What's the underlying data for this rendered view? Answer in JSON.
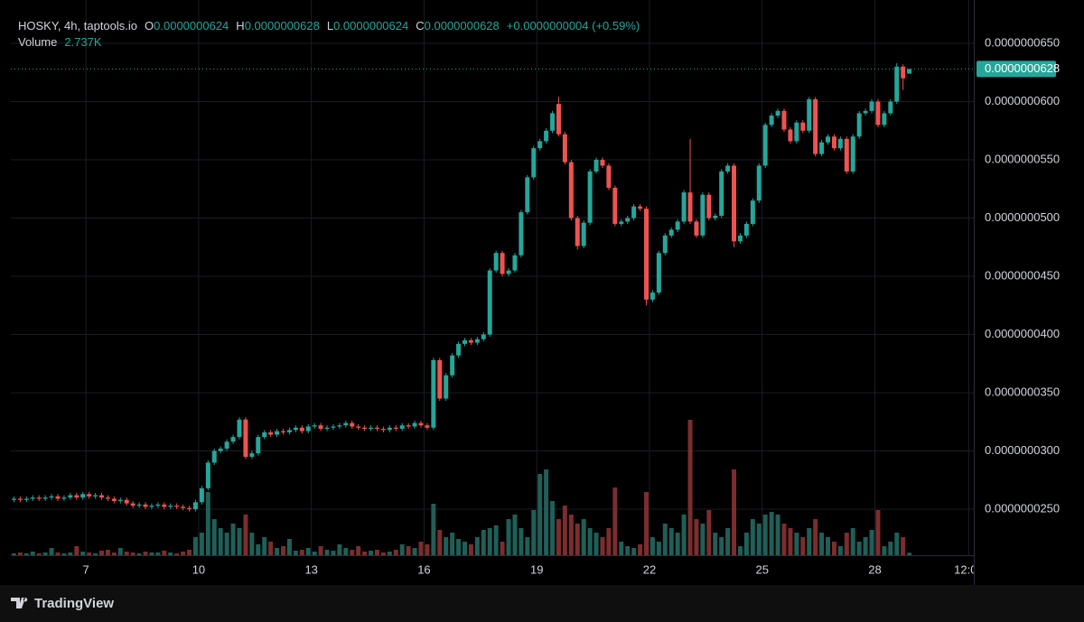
{
  "chart_data": {
    "type": "candlestick",
    "title": "HOSKY, 4h, taptools.io",
    "ohlc": [
      {
        "key": "O",
        "value": "0.0000000624"
      },
      {
        "key": "H",
        "value": "0.0000000628"
      },
      {
        "key": "L",
        "value": "0.0000000624"
      },
      {
        "key": "C",
        "value": "0.0000000628"
      }
    ],
    "change": "+0.0000000004 (+0.59%)",
    "volume_legend": {
      "name": "Volume",
      "label": "2.737K"
    },
    "last_price": {
      "value": 6.28e-08,
      "label": "0.0000000628"
    },
    "branding": "TradingView",
    "up_color": "#26a69a",
    "down_color": "#ef5350",
    "volume_up_color": "#1f5f58",
    "volume_down_color": "#7c2d2d",
    "grid": true,
    "xlim": [
      -0.5,
      153.3
    ],
    "xticks": [
      {
        "value": 11.5,
        "label": "7"
      },
      {
        "value": 29.5,
        "label": "10"
      },
      {
        "value": 47.5,
        "label": "13"
      },
      {
        "value": 65.5,
        "label": "16"
      },
      {
        "value": 83.5,
        "label": "19"
      },
      {
        "value": 101.5,
        "label": "22"
      },
      {
        "value": 119.5,
        "label": "25"
      },
      {
        "value": 137.5,
        "label": "28"
      },
      {
        "value": 152.5,
        "label": "12:00"
      }
    ],
    "ylim": [
      2.105e-08,
      6.795e-08
    ],
    "yticks": [
      {
        "value": 2.5e-08,
        "label": "0.0000000250"
      },
      {
        "value": 3e-08,
        "label": "0.0000000300"
      },
      {
        "value": 3.5e-08,
        "label": "0.0000000350"
      },
      {
        "value": 4e-08,
        "label": "0.0000000400"
      },
      {
        "value": 4.5e-08,
        "label": "0.0000000450"
      },
      {
        "value": 5e-08,
        "label": "0.0000000500"
      },
      {
        "value": 5.5e-08,
        "label": "0.0000000550"
      },
      {
        "value": 6e-08,
        "label": "0.0000000600"
      },
      {
        "value": 6.5e-08,
        "label": "0.0000000650"
      }
    ],
    "y2lim": [
      0,
      605000
    ],
    "open": [
      2.58e-08,
      2.59e-08,
      2.58e-08,
      2.59e-08,
      2.6e-08,
      2.59e-08,
      2.6e-08,
      2.61e-08,
      2.59e-08,
      2.6e-08,
      2.62e-08,
      2.6e-08,
      2.63e-08,
      2.61e-08,
      2.62e-08,
      2.6e-08,
      2.59e-08,
      2.57e-08,
      2.58e-08,
      2.55e-08,
      2.53e-08,
      2.54e-08,
      2.52e-08,
      2.53e-08,
      2.54e-08,
      2.52e-08,
      2.53e-08,
      2.52e-08,
      2.51e-08,
      2.5e-08,
      2.56e-08,
      2.68e-08,
      2.9e-08,
      3e-08,
      3.02e-08,
      3.08e-08,
      3.12e-08,
      3.27e-08,
      2.95e-08,
      2.98e-08,
      3.12e-08,
      3.16e-08,
      3.14e-08,
      3.17e-08,
      3.16e-08,
      3.18e-08,
      3.2e-08,
      3.17e-08,
      3.21e-08,
      3.22e-08,
      3.19e-08,
      3.2e-08,
      3.21e-08,
      3.22e-08,
      3.24e-08,
      3.21e-08,
      3.2e-08,
      3.19e-08,
      3.2e-08,
      3.19e-08,
      3.18e-08,
      3.2e-08,
      3.19e-08,
      3.22e-08,
      3.21e-08,
      3.24e-08,
      3.22e-08,
      3.2e-08,
      3.78e-08,
      3.45e-08,
      3.65e-08,
      3.82e-08,
      3.92e-08,
      3.95e-08,
      3.93e-08,
      3.96e-08,
      4e-08,
      4.55e-08,
      4.7e-08,
      4.52e-08,
      4.55e-08,
      4.68e-08,
      5.05e-08,
      5.35e-08,
      5.6e-08,
      5.66e-08,
      5.75e-08,
      5.98e-08,
      5.72e-08,
      5.48e-08,
      5e-08,
      4.76e-08,
      4.96e-08,
      5.4e-08,
      5.5e-08,
      5.45e-08,
      5.26e-08,
      4.95e-08,
      4.97e-08,
      5e-08,
      5.1e-08,
      5.08e-08,
      4.3e-08,
      4.36e-08,
      4.7e-08,
      4.85e-08,
      4.9e-08,
      4.97e-08,
      5.22e-08,
      4.97e-08,
      4.85e-08,
      5.2e-08,
      5e-08,
      5.02e-08,
      5.4e-08,
      5.45e-08,
      4.8e-08,
      4.85e-08,
      4.95e-08,
      5.15e-08,
      5.45e-08,
      5.8e-08,
      5.88e-08,
      5.92e-08,
      5.76e-08,
      5.66e-08,
      5.82e-08,
      5.75e-08,
      6.02e-08,
      5.55e-08,
      5.65e-08,
      5.7e-08,
      5.6e-08,
      5.68e-08,
      5.4e-08,
      5.7e-08,
      5.9e-08,
      5.92e-08,
      6e-08,
      5.8e-08,
      5.9e-08,
      6e-08,
      6.3e-08,
      6.24e-08
    ],
    "high": [
      2.61e-08,
      2.61e-08,
      2.61e-08,
      2.62e-08,
      2.62e-08,
      2.62e-08,
      2.63e-08,
      2.63e-08,
      2.62e-08,
      2.64e-08,
      2.64e-08,
      2.65e-08,
      2.65e-08,
      2.64e-08,
      2.64e-08,
      2.62e-08,
      2.61e-08,
      2.6e-08,
      2.6e-08,
      2.57e-08,
      2.56e-08,
      2.56e-08,
      2.55e-08,
      2.56e-08,
      2.56e-08,
      2.55e-08,
      2.55e-08,
      2.54e-08,
      2.53e-08,
      2.58e-08,
      2.7e-08,
      2.92e-08,
      3.02e-08,
      3.04e-08,
      3.1e-08,
      3.14e-08,
      3.29e-08,
      3.29e-08,
      3e-08,
      3.14e-08,
      3.18e-08,
      3.18e-08,
      3.19e-08,
      3.19e-08,
      3.2e-08,
      3.22e-08,
      3.22e-08,
      3.23e-08,
      3.24e-08,
      3.24e-08,
      3.22e-08,
      3.23e-08,
      3.24e-08,
      3.26e-08,
      3.26e-08,
      3.23e-08,
      3.22e-08,
      3.22e-08,
      3.22e-08,
      3.21e-08,
      3.22e-08,
      3.22e-08,
      3.24e-08,
      3.24e-08,
      3.26e-08,
      3.26e-08,
      3.24e-08,
      3.8e-08,
      3.8e-08,
      3.67e-08,
      3.84e-08,
      3.94e-08,
      3.97e-08,
      3.97e-08,
      3.98e-08,
      4.02e-08,
      4.57e-08,
      4.72e-08,
      4.72e-08,
      4.57e-08,
      4.7e-08,
      5.07e-08,
      5.37e-08,
      5.62e-08,
      5.68e-08,
      5.77e-08,
      5.92e-08,
      6.04e-08,
      5.74e-08,
      5.5e-08,
      5.02e-08,
      4.98e-08,
      5.42e-08,
      5.52e-08,
      5.52e-08,
      5.47e-08,
      5.28e-08,
      4.99e-08,
      5.02e-08,
      5.12e-08,
      5.12e-08,
      5.1e-08,
      4.38e-08,
      4.72e-08,
      4.87e-08,
      4.92e-08,
      4.99e-08,
      5.24e-08,
      5.68e-08,
      4.99e-08,
      5.22e-08,
      5.22e-08,
      5.04e-08,
      5.42e-08,
      5.47e-08,
      5.47e-08,
      4.87e-08,
      4.97e-08,
      5.17e-08,
      5.47e-08,
      5.82e-08,
      5.9e-08,
      5.94e-08,
      5.94e-08,
      5.78e-08,
      5.84e-08,
      5.84e-08,
      6.04e-08,
      6.04e-08,
      5.67e-08,
      5.72e-08,
      5.72e-08,
      5.7e-08,
      5.7e-08,
      5.72e-08,
      5.92e-08,
      5.94e-08,
      6.02e-08,
      6.02e-08,
      5.92e-08,
      6.02e-08,
      6.33e-08,
      6.32e-08,
      6.28e-08
    ],
    "low": [
      2.56e-08,
      2.56e-08,
      2.56e-08,
      2.57e-08,
      2.57e-08,
      2.57e-08,
      2.58e-08,
      2.57e-08,
      2.57e-08,
      2.58e-08,
      2.58e-08,
      2.58e-08,
      2.59e-08,
      2.59e-08,
      2.58e-08,
      2.57e-08,
      2.55e-08,
      2.55e-08,
      2.53e-08,
      2.51e-08,
      2.51e-08,
      2.5e-08,
      2.5e-08,
      2.51e-08,
      2.5e-08,
      2.5e-08,
      2.5e-08,
      2.49e-08,
      2.48e-08,
      2.48e-08,
      2.54e-08,
      2.66e-08,
      2.88e-08,
      2.98e-08,
      3e-08,
      3.06e-08,
      3.1e-08,
      2.93e-08,
      2.93e-08,
      2.96e-08,
      3.1e-08,
      3.12e-08,
      3.12e-08,
      3.14e-08,
      3.14e-08,
      3.16e-08,
      3.15e-08,
      3.15e-08,
      3.19e-08,
      3.17e-08,
      3.17e-08,
      3.18e-08,
      3.19e-08,
      3.2e-08,
      3.19e-08,
      3.18e-08,
      3.17e-08,
      3.17e-08,
      3.17e-08,
      3.16e-08,
      3.16e-08,
      3.17e-08,
      3.17e-08,
      3.19e-08,
      3.19e-08,
      3.2e-08,
      3.18e-08,
      3.18e-08,
      3.43e-08,
      3.43e-08,
      3.63e-08,
      3.8e-08,
      3.9e-08,
      3.91e-08,
      3.91e-08,
      3.94e-08,
      3.98e-08,
      4.53e-08,
      4.5e-08,
      4.5e-08,
      4.53e-08,
      4.66e-08,
      5.03e-08,
      5.33e-08,
      5.58e-08,
      5.64e-08,
      5.73e-08,
      5.7e-08,
      5.46e-08,
      4.98e-08,
      4.73e-08,
      4.74e-08,
      4.94e-08,
      5.38e-08,
      5.43e-08,
      5.24e-08,
      4.93e-08,
      4.93e-08,
      4.95e-08,
      4.98e-08,
      5.06e-08,
      4.25e-08,
      4.28e-08,
      4.34e-08,
      4.68e-08,
      4.83e-08,
      4.88e-08,
      4.95e-08,
      4.95e-08,
      4.83e-08,
      4.83e-08,
      4.98e-08,
      4.98e-08,
      5e-08,
      5.38e-08,
      4.75e-08,
      4.78e-08,
      4.83e-08,
      4.93e-08,
      5.13e-08,
      5.43e-08,
      5.78e-08,
      5.86e-08,
      5.74e-08,
      5.64e-08,
      5.64e-08,
      5.73e-08,
      5.73e-08,
      5.53e-08,
      5.53e-08,
      5.63e-08,
      5.58e-08,
      5.58e-08,
      5.38e-08,
      5.38e-08,
      5.68e-08,
      5.88e-08,
      5.9e-08,
      5.78e-08,
      5.78e-08,
      5.88e-08,
      5.98e-08,
      6.1e-08,
      6.24e-08
    ],
    "close": [
      2.59e-08,
      2.58e-08,
      2.59e-08,
      2.6e-08,
      2.59e-08,
      2.6e-08,
      2.61e-08,
      2.59e-08,
      2.6e-08,
      2.62e-08,
      2.6e-08,
      2.63e-08,
      2.61e-08,
      2.62e-08,
      2.6e-08,
      2.59e-08,
      2.57e-08,
      2.58e-08,
      2.55e-08,
      2.53e-08,
      2.54e-08,
      2.52e-08,
      2.53e-08,
      2.54e-08,
      2.52e-08,
      2.53e-08,
      2.52e-08,
      2.51e-08,
      2.5e-08,
      2.56e-08,
      2.68e-08,
      2.9e-08,
      3e-08,
      3.02e-08,
      3.08e-08,
      3.12e-08,
      3.27e-08,
      2.95e-08,
      2.98e-08,
      3.12e-08,
      3.16e-08,
      3.14e-08,
      3.17e-08,
      3.16e-08,
      3.18e-08,
      3.2e-08,
      3.17e-08,
      3.21e-08,
      3.22e-08,
      3.19e-08,
      3.2e-08,
      3.21e-08,
      3.22e-08,
      3.24e-08,
      3.21e-08,
      3.2e-08,
      3.19e-08,
      3.2e-08,
      3.19e-08,
      3.18e-08,
      3.2e-08,
      3.19e-08,
      3.22e-08,
      3.21e-08,
      3.24e-08,
      3.22e-08,
      3.2e-08,
      3.78e-08,
      3.45e-08,
      3.65e-08,
      3.82e-08,
      3.92e-08,
      3.95e-08,
      3.93e-08,
      3.96e-08,
      4e-08,
      4.55e-08,
      4.7e-08,
      4.52e-08,
      4.55e-08,
      4.68e-08,
      5.05e-08,
      5.35e-08,
      5.6e-08,
      5.66e-08,
      5.75e-08,
      5.9e-08,
      5.72e-08,
      5.48e-08,
      5e-08,
      4.76e-08,
      4.96e-08,
      5.4e-08,
      5.5e-08,
      5.45e-08,
      5.26e-08,
      4.95e-08,
      4.97e-08,
      5e-08,
      5.1e-08,
      5.08e-08,
      4.3e-08,
      4.36e-08,
      4.7e-08,
      4.85e-08,
      4.9e-08,
      4.97e-08,
      5.22e-08,
      4.97e-08,
      4.85e-08,
      5.2e-08,
      5e-08,
      5.02e-08,
      5.4e-08,
      5.45e-08,
      4.8e-08,
      4.85e-08,
      4.95e-08,
      5.15e-08,
      5.45e-08,
      5.8e-08,
      5.88e-08,
      5.92e-08,
      5.76e-08,
      5.66e-08,
      5.82e-08,
      5.75e-08,
      6.02e-08,
      5.55e-08,
      5.65e-08,
      5.7e-08,
      5.6e-08,
      5.68e-08,
      5.4e-08,
      5.7e-08,
      5.9e-08,
      5.92e-08,
      6e-08,
      5.8e-08,
      5.9e-08,
      6e-08,
      6.3e-08,
      6.2e-08,
      6.28e-08
    ],
    "volume": [
      2000,
      3000,
      2000,
      4000,
      2000,
      3000,
      8000,
      3000,
      2000,
      3000,
      10000,
      4000,
      3000,
      2000,
      5000,
      6000,
      3000,
      8000,
      4000,
      3000,
      2000,
      4000,
      3000,
      3000,
      5000,
      3000,
      2000,
      4000,
      6000,
      20000,
      25000,
      70000,
      40000,
      30000,
      25000,
      35000,
      30000,
      45000,
      25000,
      12000,
      20000,
      15000,
      8000,
      10000,
      18000,
      5000,
      6000,
      8000,
      4000,
      10000,
      6000,
      5000,
      12000,
      8000,
      6000,
      10000,
      4000,
      5000,
      6000,
      3000,
      4000,
      6000,
      12000,
      10000,
      8000,
      15000,
      12000,
      57000,
      28000,
      20000,
      25000,
      18000,
      15000,
      12000,
      20000,
      28000,
      30000,
      33000,
      15000,
      40000,
      45000,
      30000,
      20000,
      50000,
      90000,
      95000,
      60000,
      40000,
      55000,
      45000,
      35000,
      40000,
      30000,
      25000,
      20000,
      30000,
      75000,
      15000,
      10000,
      8000,
      12000,
      70000,
      20000,
      15000,
      35000,
      30000,
      25000,
      45000,
      150000,
      40000,
      35000,
      50000,
      25000,
      20000,
      30000,
      95000,
      10000,
      25000,
      40000,
      35000,
      45000,
      48000,
      45000,
      35000,
      30000,
      25000,
      20000,
      30000,
      40000,
      25000,
      20000,
      15000,
      10000,
      25000,
      30000,
      15000,
      20000,
      28000,
      50000,
      10000,
      15000,
      25000,
      20000,
      2737
    ]
  }
}
